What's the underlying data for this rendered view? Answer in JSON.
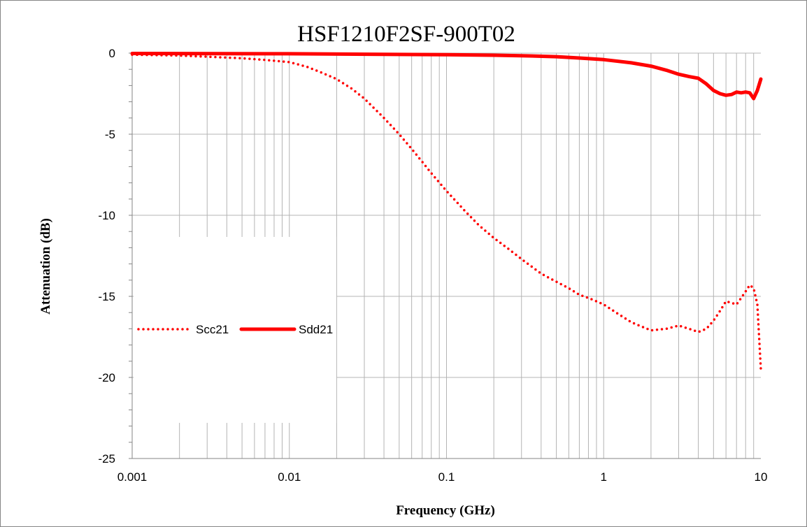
{
  "chart_data": {
    "type": "line",
    "title": "HSF1210F2SF-900T02",
    "xlabel": "Frequency (GHz)",
    "ylabel": "Attenuation (dB)",
    "xscale": "log",
    "xlim": [
      0.001,
      10
    ],
    "ylim": [
      -25,
      0
    ],
    "xticks": [
      0.001,
      0.01,
      0.1,
      1,
      10
    ],
    "xtick_labels": [
      "0.001",
      "0.01",
      "0.1",
      "1",
      "10"
    ],
    "yticks": [
      0,
      -5,
      -10,
      -15,
      -20,
      -25
    ],
    "ytick_labels": [
      "0",
      "-5",
      "-10",
      "-15",
      "-20",
      "-25"
    ],
    "grid": true,
    "legend_position": "middle-left",
    "series": [
      {
        "name": "Scc21",
        "style": "dotted",
        "color": "#ff0000",
        "x": [
          0.001,
          0.002,
          0.003,
          0.005,
          0.007,
          0.01,
          0.013,
          0.016,
          0.02,
          0.025,
          0.03,
          0.04,
          0.05,
          0.06,
          0.07,
          0.08,
          0.1,
          0.13,
          0.16,
          0.2,
          0.25,
          0.3,
          0.4,
          0.5,
          0.6,
          0.7,
          0.8,
          1.0,
          1.2,
          1.5,
          2.0,
          2.5,
          3.0,
          3.5,
          4.0,
          4.5,
          5.0,
          5.5,
          6.0,
          6.5,
          7.0,
          7.5,
          8.0,
          8.5,
          9.0,
          9.5,
          10.0
        ],
        "y": [
          -0.1,
          -0.15,
          -0.22,
          -0.32,
          -0.42,
          -0.55,
          -0.85,
          -1.2,
          -1.6,
          -2.2,
          -2.8,
          -4.0,
          -5.0,
          -5.9,
          -6.7,
          -7.4,
          -8.5,
          -9.7,
          -10.6,
          -11.4,
          -12.1,
          -12.7,
          -13.6,
          -14.1,
          -14.5,
          -14.9,
          -15.1,
          -15.5,
          -16.0,
          -16.6,
          -17.1,
          -17.0,
          -16.8,
          -17.0,
          -17.2,
          -17.0,
          -16.5,
          -15.9,
          -15.3,
          -15.4,
          -15.5,
          -15.1,
          -14.7,
          -14.3,
          -14.5,
          -15.5,
          -19.5
        ]
      },
      {
        "name": "Sdd21",
        "style": "solid",
        "color": "#ff0000",
        "x": [
          0.001,
          0.01,
          0.05,
          0.1,
          0.2,
          0.3,
          0.5,
          0.7,
          1.0,
          1.5,
          2.0,
          2.5,
          3.0,
          3.5,
          4.0,
          4.5,
          5.0,
          5.5,
          6.0,
          6.5,
          7.0,
          7.5,
          8.0,
          8.5,
          9.0,
          9.5,
          10.0
        ],
        "y": [
          -0.02,
          -0.04,
          -0.08,
          -0.1,
          -0.13,
          -0.16,
          -0.22,
          -0.3,
          -0.4,
          -0.6,
          -0.8,
          -1.05,
          -1.3,
          -1.45,
          -1.55,
          -1.9,
          -2.3,
          -2.5,
          -2.6,
          -2.55,
          -2.4,
          -2.45,
          -2.4,
          -2.45,
          -2.8,
          -2.3,
          -1.6
        ]
      }
    ]
  }
}
